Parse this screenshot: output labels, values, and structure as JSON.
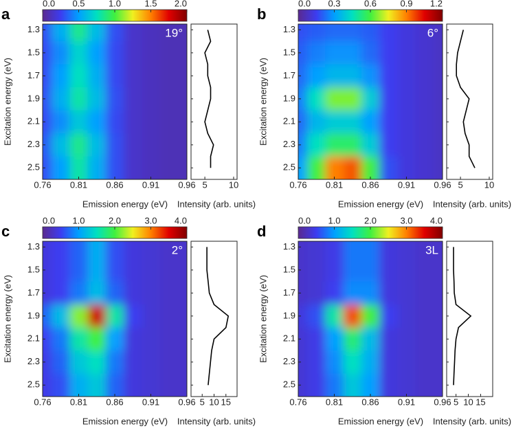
{
  "chart_data": [
    {
      "type": "heatmap",
      "panel_label": "a",
      "annotation": "19°",
      "colorscale": [
        "#5a2a90",
        "#3c3cf0",
        "#00a0ff",
        "#00e0c0",
        "#40f040",
        "#f0f020",
        "#ff8000",
        "#e00000",
        "#800000"
      ],
      "zlim": [
        0,
        2
      ],
      "zticks": [
        {
          "value": 0,
          "label": "0.0"
        },
        0.5,
        {
          "value": 1,
          "label": "1.0"
        },
        1.5,
        {
          "value": 2,
          "label": "2.0"
        }
      ],
      "x": [
        0.76,
        0.785,
        0.81,
        0.835,
        0.86,
        0.885,
        0.91,
        0.935,
        0.96
      ],
      "y": [
        1.3,
        1.5,
        1.7,
        1.9,
        2.1,
        2.3,
        2.5
      ],
      "values": [
        [
          0.3,
          0.55,
          0.85,
          0.6,
          0.3,
          0.15,
          0.12,
          0.1,
          0.1
        ],
        [
          0.28,
          0.45,
          0.7,
          0.5,
          0.28,
          0.15,
          0.12,
          0.1,
          0.1
        ],
        [
          0.28,
          0.5,
          0.75,
          0.55,
          0.28,
          0.15,
          0.12,
          0.1,
          0.1
        ],
        [
          0.3,
          0.55,
          0.8,
          0.6,
          0.3,
          0.15,
          0.12,
          0.1,
          0.1
        ],
        [
          0.28,
          0.45,
          0.65,
          0.5,
          0.28,
          0.15,
          0.12,
          0.1,
          0.1
        ],
        [
          0.32,
          0.6,
          0.85,
          0.6,
          0.3,
          0.15,
          0.12,
          0.1,
          0.1
        ],
        [
          0.3,
          0.5,
          0.8,
          0.55,
          0.3,
          0.15,
          0.12,
          0.1,
          0.1
        ]
      ],
      "xlim": [
        0.76,
        0.96
      ],
      "xticks": [
        0.76,
        0.81,
        0.86,
        0.91,
        0.96
      ],
      "ylim": [
        1.25,
        2.6
      ],
      "yreverse": true,
      "yticks": [
        1.3,
        1.5,
        1.7,
        1.9,
        2.1,
        2.3,
        2.5
      ],
      "xlabel": "Emission energy (eV)",
      "ylabel": "Excitation energy (eV)",
      "profile": {
        "xlabel": "Intensity (arb. units)",
        "xlim": [
          2.6,
          10.6
        ],
        "xticks": [
          5,
          10
        ],
        "y": [
          1.3,
          1.4,
          1.5,
          1.6,
          1.7,
          1.8,
          1.9,
          2.0,
          2.1,
          2.2,
          2.3,
          2.4,
          2.5
        ],
        "values": [
          5.5,
          6,
          5,
          5.5,
          5.5,
          6,
          6,
          5.5,
          5,
          5.5,
          6.5,
          6,
          6
        ]
      }
    },
    {
      "type": "heatmap",
      "panel_label": "b",
      "annotation": "6°",
      "colorscale": [
        "#5a2a90",
        "#3c3cf0",
        "#00a0ff",
        "#00e0c0",
        "#40f040",
        "#f0f020",
        "#ff8000",
        "#e00000",
        "#800000"
      ],
      "zlim": [
        0,
        1.2
      ],
      "zticks": [
        {
          "value": 0,
          "label": "0.0"
        },
        0.3,
        0.6,
        0.9,
        1.2
      ],
      "x": [
        0.76,
        0.785,
        0.81,
        0.835,
        0.86,
        0.885,
        0.91,
        0.935,
        0.96
      ],
      "y": [
        1.3,
        1.5,
        1.7,
        1.9,
        2.1,
        2.3,
        2.5
      ],
      "values": [
        [
          0.18,
          0.2,
          0.22,
          0.22,
          0.2,
          0.15,
          0.12,
          0.1,
          0.08
        ],
        [
          0.2,
          0.25,
          0.28,
          0.28,
          0.22,
          0.15,
          0.12,
          0.1,
          0.08
        ],
        [
          0.22,
          0.3,
          0.35,
          0.35,
          0.28,
          0.15,
          0.12,
          0.1,
          0.08
        ],
        [
          0.25,
          0.45,
          0.65,
          0.65,
          0.4,
          0.15,
          0.12,
          0.1,
          0.08
        ],
        [
          0.22,
          0.35,
          0.4,
          0.4,
          0.3,
          0.15,
          0.12,
          0.1,
          0.08
        ],
        [
          0.25,
          0.45,
          0.55,
          0.55,
          0.4,
          0.15,
          0.12,
          0.1,
          0.08
        ],
        [
          0.3,
          0.6,
          0.9,
          0.95,
          0.6,
          0.18,
          0.12,
          0.1,
          0.08
        ]
      ],
      "xlim": [
        0.76,
        0.96
      ],
      "xticks": [
        0.76,
        0.81,
        0.86,
        0.91,
        0.96
      ],
      "ylim": [
        1.25,
        2.6
      ],
      "yreverse": true,
      "yticks": [
        1.3,
        1.5,
        1.7,
        1.9,
        2.1,
        2.3,
        2.5
      ],
      "xlabel": "Emission energy (eV)",
      "ylabel": "Excitation energy (eV)",
      "profile": {
        "xlabel": "Intensity (arb. units)",
        "xlim": [
          2.6,
          10.6
        ],
        "xticks": [
          5,
          10
        ],
        "y": [
          1.3,
          1.4,
          1.5,
          1.6,
          1.7,
          1.8,
          1.9,
          2.0,
          2.1,
          2.2,
          2.3,
          2.4,
          2.5
        ],
        "values": [
          5.5,
          5,
          4.5,
          4.3,
          4.3,
          5,
          6.5,
          6,
          5.5,
          5.8,
          6.5,
          6.5,
          7.5
        ]
      }
    },
    {
      "type": "heatmap",
      "panel_label": "c",
      "annotation": "2°",
      "colorscale": [
        "#5a2a90",
        "#3c3cf0",
        "#00a0ff",
        "#00e0c0",
        "#40f040",
        "#f0f020",
        "#ff8000",
        "#e00000",
        "#800000"
      ],
      "zlim": [
        0,
        4
      ],
      "zticks": [
        {
          "value": 0,
          "label": "0.0"
        },
        {
          "value": 1,
          "label": "1.0"
        },
        {
          "value": 2,
          "label": "2.0"
        },
        {
          "value": 3,
          "label": "3.0"
        },
        {
          "value": 4,
          "label": "4.0"
        }
      ],
      "x": [
        0.76,
        0.785,
        0.81,
        0.835,
        0.86,
        0.885,
        0.91,
        0.935,
        0.96
      ],
      "y": [
        1.3,
        1.5,
        1.7,
        1.9,
        2.1,
        2.3,
        2.5
      ],
      "values": [
        [
          0.4,
          0.5,
          0.7,
          1.1,
          0.6,
          0.4,
          0.35,
          0.3,
          0.3
        ],
        [
          0.4,
          0.5,
          0.7,
          1.1,
          0.6,
          0.4,
          0.35,
          0.3,
          0.3
        ],
        [
          0.4,
          0.5,
          0.8,
          1.2,
          0.7,
          0.4,
          0.35,
          0.3,
          0.3
        ],
        [
          0.7,
          1.2,
          2.2,
          3.6,
          1.6,
          0.5,
          0.35,
          0.3,
          0.3
        ],
        [
          0.5,
          0.8,
          1.6,
          2.0,
          1.0,
          0.4,
          0.35,
          0.3,
          0.3
        ],
        [
          0.45,
          0.7,
          1.3,
          1.5,
          0.8,
          0.4,
          0.35,
          0.3,
          0.3
        ],
        [
          0.45,
          0.6,
          1.1,
          1.3,
          0.7,
          0.4,
          0.35,
          0.3,
          0.3
        ]
      ],
      "xlim": [
        0.76,
        0.96
      ],
      "xticks": [
        0.76,
        0.81,
        0.86,
        0.91,
        0.96
      ],
      "ylim": [
        1.25,
        2.6
      ],
      "yreverse": true,
      "yticks": [
        1.3,
        1.5,
        1.7,
        1.9,
        2.1,
        2.3,
        2.5
      ],
      "xlabel": "Emission energy (eV)",
      "ylabel": "Excitation energy (eV)",
      "profile": {
        "xlabel": "Intensity (arb. units)",
        "xlim": [
          0.3,
          19.7
        ],
        "xticks": [
          5,
          10,
          15
        ],
        "y": [
          1.3,
          1.4,
          1.5,
          1.6,
          1.7,
          1.8,
          1.9,
          2.0,
          2.1,
          2.2,
          2.3,
          2.4,
          2.5
        ],
        "values": [
          7,
          7,
          7,
          7.5,
          8,
          10,
          16,
          15,
          10,
          9,
          8.5,
          8,
          7.5
        ]
      }
    },
    {
      "type": "heatmap",
      "panel_label": "d",
      "annotation": "3L",
      "colorscale": [
        "#5a2a90",
        "#3c3cf0",
        "#00a0ff",
        "#00e0c0",
        "#40f040",
        "#f0f020",
        "#ff8000",
        "#e00000",
        "#800000"
      ],
      "zlim": [
        0,
        4
      ],
      "zticks": [
        {
          "value": 0,
          "label": "0.0"
        },
        {
          "value": 1,
          "label": "1.0"
        },
        {
          "value": 2,
          "label": "2.0"
        },
        {
          "value": 3,
          "label": "3.0"
        },
        {
          "value": 4,
          "label": "4.0"
        }
      ],
      "x": [
        0.76,
        0.785,
        0.81,
        0.835,
        0.86,
        0.885,
        0.91,
        0.935,
        0.96
      ],
      "y": [
        1.3,
        1.5,
        1.7,
        1.9,
        2.1,
        2.3,
        2.5
      ],
      "values": [
        [
          0.3,
          0.35,
          0.45,
          0.8,
          0.8,
          0.4,
          0.35,
          0.3,
          0.3
        ],
        [
          0.3,
          0.35,
          0.45,
          0.8,
          0.8,
          0.4,
          0.35,
          0.3,
          0.3
        ],
        [
          0.3,
          0.35,
          0.5,
          0.9,
          0.9,
          0.4,
          0.35,
          0.3,
          0.3
        ],
        [
          0.4,
          0.6,
          1.6,
          3.2,
          2.0,
          0.5,
          0.35,
          0.3,
          0.3
        ],
        [
          0.35,
          0.45,
          1.0,
          1.8,
          1.2,
          0.4,
          0.35,
          0.3,
          0.3
        ],
        [
          0.35,
          0.45,
          0.9,
          1.5,
          1.1,
          0.4,
          0.35,
          0.3,
          0.3
        ],
        [
          0.35,
          0.45,
          0.8,
          1.3,
          1.0,
          0.4,
          0.35,
          0.3,
          0.3
        ]
      ],
      "xlim": [
        0.76,
        0.96
      ],
      "xticks": [
        0.76,
        0.81,
        0.86,
        0.91,
        0.96
      ],
      "ylim": [
        1.25,
        2.6
      ],
      "yreverse": true,
      "yticks": [
        1.3,
        1.5,
        1.7,
        1.9,
        2.1,
        2.3,
        2.5
      ],
      "xlabel": "Emission energy (eV)",
      "ylabel": "Excitation energy (eV)",
      "profile": {
        "xlabel": "Intensity (arb. units)",
        "xlim": [
          1.2,
          19.9
        ],
        "xticks": [
          5,
          10,
          15
        ],
        "y": [
          1.3,
          1.4,
          1.5,
          1.6,
          1.7,
          1.8,
          1.9,
          2.0,
          2.1,
          2.2,
          2.3,
          2.4,
          2.5
        ],
        "values": [
          4,
          4,
          4,
          4.2,
          4.3,
          5,
          11,
          6,
          5,
          4.6,
          4.4,
          4.2,
          4
        ]
      }
    }
  ]
}
